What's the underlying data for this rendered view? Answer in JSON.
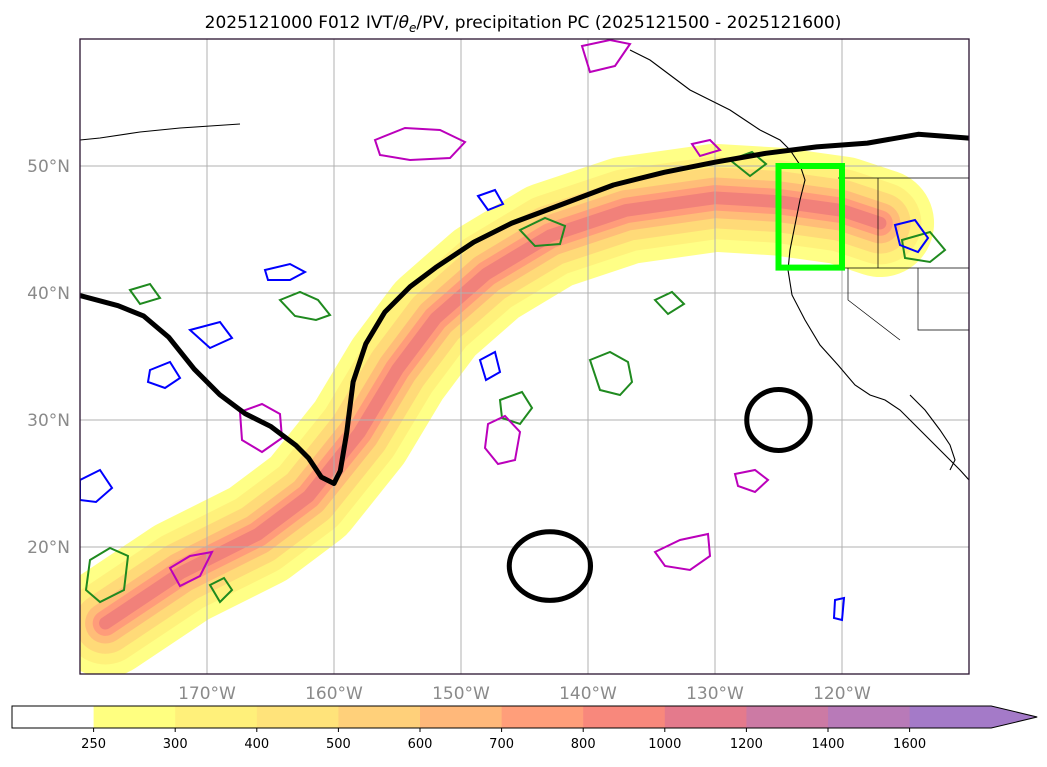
{
  "chart_data": {
    "type": "heatmap",
    "title": "2025121000 F012 IVT/θe/PV, precipitation PC (2025121500 - 2025121600)",
    "title_parts": {
      "prefix": "2025121000 F012 IVT/",
      "theta": "θ",
      "theta_sub": "e",
      "suffix": "/PV, precipitation PC (2025121500 - 2025121600)"
    },
    "map": {
      "lon_range": [
        -180,
        -110
      ],
      "lat_range": [
        10,
        60
      ],
      "grid": true,
      "lon_ticks": [
        {
          "value": -170,
          "label": "170°W"
        },
        {
          "value": -160,
          "label": "160°W"
        },
        {
          "value": -150,
          "label": "150°W"
        },
        {
          "value": -140,
          "label": "140°W"
        },
        {
          "value": -130,
          "label": "130°W"
        },
        {
          "value": -120,
          "label": "120°W"
        }
      ],
      "lat_ticks": [
        {
          "value": 20,
          "label": "20°N"
        },
        {
          "value": 30,
          "label": "30°N"
        },
        {
          "value": 40,
          "label": "40°N"
        },
        {
          "value": 50,
          "label": "50°N"
        }
      ],
      "highlight_box": {
        "lon": [
          -125,
          -120
        ],
        "lat": [
          42,
          50
        ],
        "color": "#00ff00"
      },
      "thick_contour": [
        [
          -180,
          39.8
        ],
        [
          -177,
          39
        ],
        [
          -175,
          38.2
        ],
        [
          -173,
          36.5
        ],
        [
          -171,
          34
        ],
        [
          -169,
          32
        ],
        [
          -167,
          30.5
        ],
        [
          -165,
          29.5
        ],
        [
          -163,
          28
        ],
        [
          -162,
          27
        ],
        [
          -161,
          25.5
        ],
        [
          -160,
          25
        ],
        [
          -159.5,
          26
        ],
        [
          -159,
          29
        ],
        [
          -158.5,
          33
        ],
        [
          -157.5,
          36
        ],
        [
          -156,
          38.5
        ],
        [
          -154,
          40.5
        ],
        [
          -152,
          42
        ],
        [
          -149,
          44
        ],
        [
          -146,
          45.5
        ],
        [
          -142,
          47
        ],
        [
          -138,
          48.5
        ],
        [
          -134,
          49.5
        ],
        [
          -130,
          50.3
        ],
        [
          -126,
          51
        ],
        [
          -122,
          51.5
        ],
        [
          -118,
          51.8
        ],
        [
          -114,
          52.5
        ],
        [
          -110,
          52.2
        ]
      ],
      "closed_contours": [
        {
          "center": [
            -143,
            18.5
          ],
          "rx": 3.2,
          "ry": 2.7
        },
        {
          "center": [
            -125,
            30
          ],
          "rx": 2.5,
          "ry": 2.4
        }
      ],
      "ivt_band": {
        "path": [
          [
            -178,
            14
          ],
          [
            -172,
            18
          ],
          [
            -166,
            21
          ],
          [
            -162,
            24
          ],
          [
            -158,
            29
          ],
          [
            -155,
            34
          ],
          [
            -152,
            38
          ],
          [
            -148,
            41.5
          ],
          [
            -143,
            44.5
          ],
          [
            -137,
            46.5
          ],
          [
            -130,
            47.5
          ],
          [
            -125,
            47.2
          ],
          [
            -120,
            46.5
          ],
          [
            -117,
            45.5
          ]
        ],
        "layers": [
          {
            "color": "#ffff80",
            "width_deg": 8.5
          },
          {
            "color": "#fff07a",
            "width_deg": 6.5
          },
          {
            "color": "#ffd878",
            "width_deg": 4.8
          },
          {
            "color": "#ffbc78",
            "width_deg": 3.2
          },
          {
            "color": "#ff9a7a",
            "width_deg": 2.0
          },
          {
            "color": "#f0807a",
            "width_deg": 1.0
          }
        ]
      }
    },
    "colorbar": {
      "ticks": [
        "250",
        "300",
        "400",
        "500",
        "600",
        "700",
        "800",
        "1000",
        "1200",
        "1400",
        "1600"
      ],
      "colors": [
        "#ffffff",
        "#ffff80",
        "#fff07a",
        "#ffe37a",
        "#ffd07a",
        "#ffb87a",
        "#ff9e7a",
        "#f8887c",
        "#e47a8c",
        "#cc7aa4",
        "#b87ab8",
        "#a47ac8"
      ],
      "extend": "max"
    }
  }
}
